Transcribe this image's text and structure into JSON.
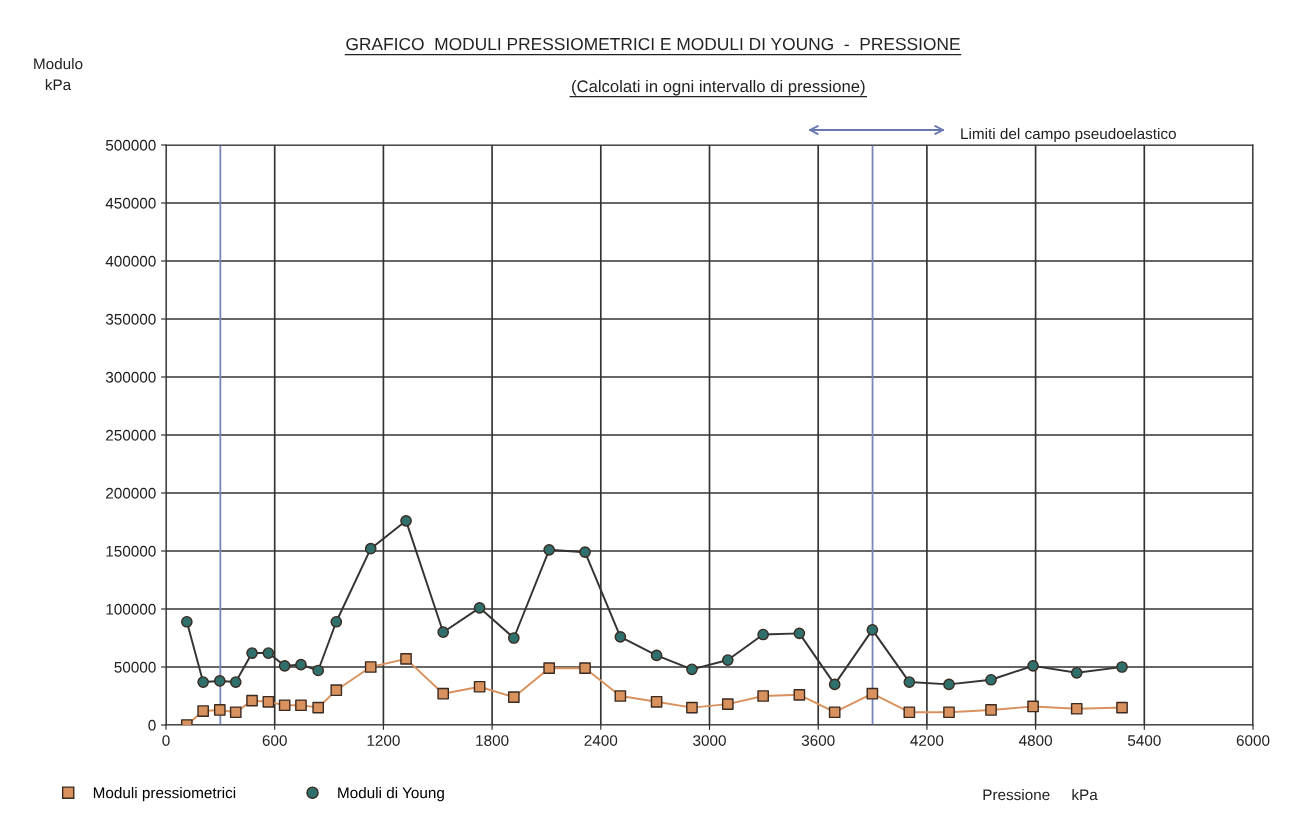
{
  "chart_data": {
    "type": "line",
    "title": "GRAFICO  MODULI PRESSIOMETRICI E MODULI DI YOUNG  -  PRESSIONE",
    "subtitle": "(Calcolati in ogni intervallo di pressione)",
    "xlabel": "Pressione     kPa",
    "ylabel": "Modulo\nkPa",
    "xlim": [
      0,
      6000
    ],
    "xticks": [
      0,
      600,
      1200,
      1800,
      2400,
      3000,
      3600,
      4200,
      4800,
      5400,
      6000
    ],
    "ylim": [
      0,
      500000
    ],
    "yticks": [
      0,
      50000,
      100000,
      150000,
      200000,
      250000,
      300000,
      350000,
      400000,
      450000,
      500000
    ],
    "grid": true,
    "legend": "bottom left",
    "line_style": "solid",
    "ref_lines": [
      {
        "axis": "x",
        "value": 300,
        "label": null,
        "color": "#7a86b8"
      },
      {
        "axis": "x",
        "value": 3900,
        "label": null,
        "color": "#7a86b8"
      }
    ],
    "annotations": [
      "Limiti del campo pseudoelastico"
    ],
    "series": [
      {
        "name": "Moduli pressiometrici",
        "color": "#d9925e",
        "marker": "square",
        "x": [
          115,
          205,
          297,
          385,
          475,
          565,
          655,
          745,
          840,
          940,
          1130,
          1325,
          1530,
          1731,
          1920,
          2115,
          2313,
          2508,
          2708,
          2903,
          3101,
          3296,
          3496,
          3691,
          3899,
          4103,
          4322,
          4554,
          4786,
          5027,
          5277
        ],
        "values": [
          0,
          12000,
          13000,
          11000,
          21000,
          20000,
          17000,
          17000,
          15000,
          30000,
          50000,
          57000,
          27000,
          33000,
          24000,
          49000,
          49000,
          25000,
          20000,
          15000,
          18000,
          25000,
          26000,
          11000,
          27000,
          11000,
          11000,
          13000,
          16000,
          14000,
          15000
        ]
      },
      {
        "name": "Moduli di Young",
        "color": "#2f6f6c",
        "marker": "circle",
        "x": [
          115,
          205,
          297,
          385,
          475,
          565,
          655,
          745,
          840,
          940,
          1130,
          1325,
          1530,
          1731,
          1920,
          2115,
          2313,
          2508,
          2708,
          2903,
          3101,
          3296,
          3496,
          3691,
          3899,
          4103,
          4322,
          4554,
          4786,
          5027,
          5277
        ],
        "values": [
          89000,
          37000,
          38000,
          37000,
          62000,
          62000,
          51000,
          52000,
          47000,
          89000,
          152000,
          176000,
          80000,
          101000,
          75000,
          151000,
          149000,
          76000,
          60000,
          48000,
          56000,
          78000,
          79000,
          35000,
          82000,
          37000,
          35000,
          39000,
          51000,
          45000,
          50000
        ]
      }
    ]
  }
}
